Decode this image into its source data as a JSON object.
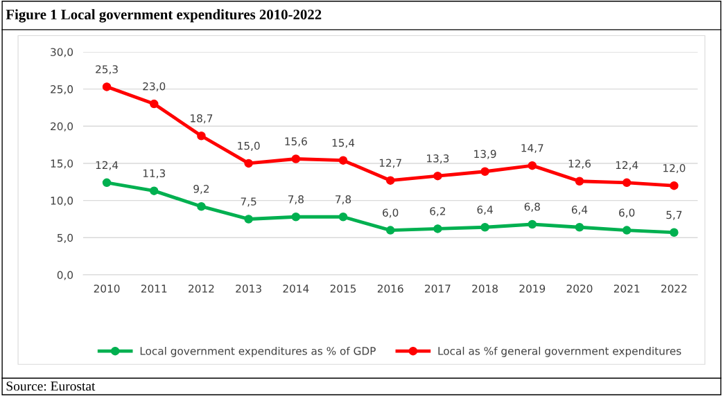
{
  "chart_data": {
    "type": "line",
    "title": "Figure 1 Local government expenditures 2010-2022",
    "categories": [
      "2010",
      "2011",
      "2012",
      "2013",
      "2014",
      "2015",
      "2016",
      "2017",
      "2018",
      "2019",
      "2020",
      "2021",
      "2022"
    ],
    "series": [
      {
        "name": "Local government expenditures as % of GDP",
        "color": "#00b050",
        "values": [
          12.4,
          11.3,
          9.2,
          7.5,
          7.8,
          7.8,
          6.0,
          6.2,
          6.4,
          6.8,
          6.4,
          6.0,
          5.7
        ],
        "value_labels": [
          "12,4",
          "11,3",
          "9,2",
          "7,5",
          "7,8",
          "7,8",
          "6,0",
          "6,2",
          "6,4",
          "6,8",
          "6,4",
          "6,0",
          "5,7"
        ]
      },
      {
        "name": "Local as %f general government expenditures",
        "color": "#ff0000",
        "values": [
          25.3,
          23.0,
          18.7,
          15.0,
          15.6,
          15.4,
          12.7,
          13.3,
          13.9,
          14.7,
          12.6,
          12.4,
          12.0
        ],
        "value_labels": [
          "25,3",
          "23,0",
          "18,7",
          "15,0",
          "15,6",
          "15,4",
          "12,7",
          "13,3",
          "13,9",
          "14,7",
          "12,6",
          "12,4",
          "12,0"
        ]
      }
    ],
    "ylim": [
      0,
      30
    ],
    "yticks": [
      {
        "value": 0,
        "label": "0,0"
      },
      {
        "value": 5,
        "label": "5,0"
      },
      {
        "value": 10,
        "label": "10,0"
      },
      {
        "value": 15,
        "label": "15,0"
      },
      {
        "value": 20,
        "label": "20,0"
      },
      {
        "value": 25,
        "label": "25,0"
      },
      {
        "value": 30,
        "label": "30,0"
      }
    ],
    "grid": "y",
    "legend": "bottom",
    "marker": "circle",
    "line_style": "solid",
    "annotations": [
      "Source: Eurostat"
    ]
  }
}
